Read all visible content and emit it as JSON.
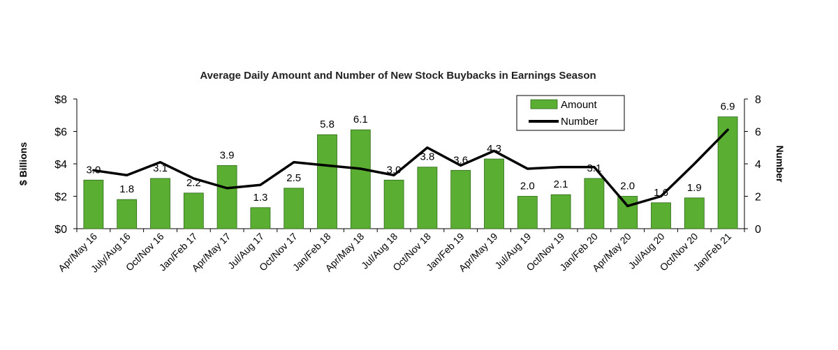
{
  "chart_data": {
    "type": "bar",
    "title": "Average Daily Amount and Number of New Stock Buybacks in Earnings Season",
    "xlabel": "",
    "ylabel": "$ Billions",
    "y2label": "Number",
    "categories": [
      "Apr/May 16",
      "July/Aug 16",
      "Oct/Nov 16",
      "Jan/Feb 17",
      "Apr/May 17",
      "Jul/Aug 17",
      "Oct/Nov 17",
      "Jan/Feb 18",
      "Apr/May 18",
      "Jul/Aug 18",
      "Oct/Nov 18",
      "Jan/Feb 19",
      "Apr/May 19",
      "Jul/Aug 19",
      "Oct/Nov 19",
      "Jan/Feb 20",
      "Apr/May 20",
      "Jul/Aug 20",
      "Oct/Nov 20",
      "Jan/Feb 21"
    ],
    "ylim": [
      0,
      8
    ],
    "y2lim": [
      0,
      8
    ],
    "yticks": [
      "$0",
      "$2",
      "$4",
      "$6",
      "$8"
    ],
    "y2ticks": [
      "0",
      "2",
      "4",
      "6",
      "8"
    ],
    "grid": false,
    "legend_position": "top-right",
    "series": [
      {
        "name": "Amount",
        "type": "bar",
        "axis": "left",
        "color": "#5aae32",
        "values": [
          3.0,
          1.8,
          3.1,
          2.2,
          3.9,
          1.3,
          2.5,
          5.8,
          6.1,
          3.0,
          3.8,
          3.6,
          4.3,
          2.0,
          2.1,
          3.1,
          2.0,
          1.6,
          1.9,
          6.9
        ],
        "labels": [
          "3.0",
          "1.8",
          "3.1",
          "2.2",
          "3.9",
          "1.3",
          "2.5",
          "5.8",
          "6.1",
          "3.0",
          "3.8",
          "3.6",
          "4.3",
          "2.0",
          "2.1",
          "3.1",
          "2.0",
          "1.6",
          "1.9",
          "6.9"
        ]
      },
      {
        "name": "Number",
        "type": "line",
        "axis": "right",
        "color": "#000000",
        "values": [
          3.6,
          3.3,
          4.1,
          3.1,
          2.5,
          2.7,
          4.1,
          3.9,
          3.7,
          3.3,
          5.0,
          3.9,
          4.8,
          3.7,
          3.8,
          3.8,
          1.4,
          2.0,
          4.0,
          6.1
        ]
      }
    ]
  }
}
